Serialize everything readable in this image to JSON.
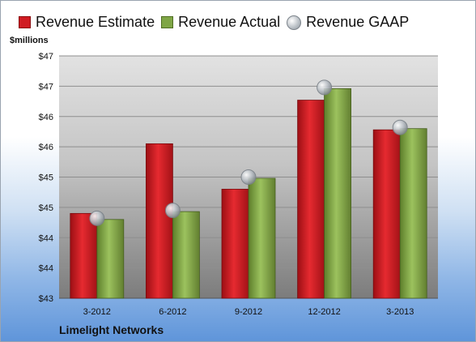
{
  "legend": {
    "estimate": "Revenue Estimate",
    "actual": "Revenue Actual",
    "gaap": "Revenue GAAP"
  },
  "ylabel": "$millions",
  "company": "Limelight Networks",
  "colors": {
    "estimate": "#d01c22",
    "actual": "#7fa646",
    "gaap": "#c4c9ce"
  },
  "chart_data": {
    "type": "bar",
    "categories": [
      "3-2012",
      "6-2012",
      "9-2012",
      "12-2012",
      "3-2013"
    ],
    "series": [
      {
        "name": "Revenue Estimate",
        "values": [
          44.4,
          45.55,
          44.8,
          46.27,
          45.78
        ]
      },
      {
        "name": "Revenue Actual",
        "values": [
          44.3,
          44.43,
          44.98,
          46.46,
          45.8
        ]
      },
      {
        "name": "Revenue GAAP",
        "values": [
          44.32,
          44.45,
          45.0,
          46.48,
          45.82
        ]
      }
    ],
    "ylim": [
      43,
      47
    ],
    "y_ticks": [
      43,
      43.5,
      44,
      44.5,
      45,
      45.5,
      46,
      46.5,
      47
    ],
    "y_tick_labels": [
      "$43",
      "$44",
      "$44",
      "$45",
      "$45",
      "$46",
      "$46",
      "$47",
      "$47"
    ],
    "grid": true,
    "legend_position": "top"
  }
}
